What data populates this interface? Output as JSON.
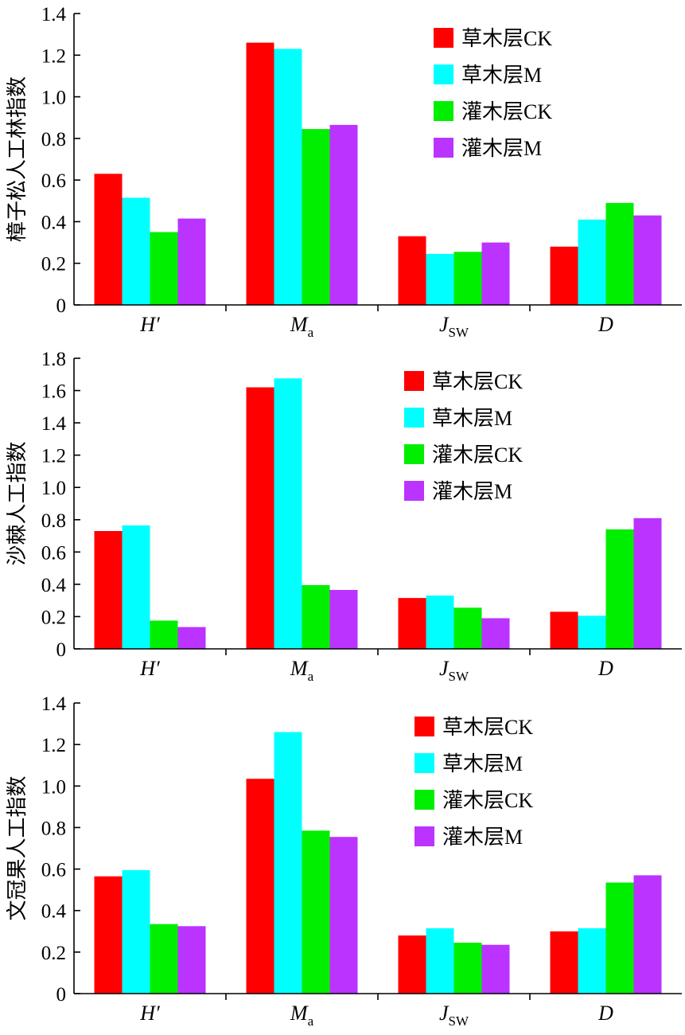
{
  "chart_data": [
    {
      "type": "bar",
      "title": "",
      "ylabel": "樟子松人工林指数",
      "ylim": [
        0,
        1.4
      ],
      "yticks": [
        "0",
        "0.2",
        "0.4",
        "0.6",
        "0.8",
        "1.0",
        "1.2",
        "1.4"
      ],
      "categories": [
        {
          "main": "H′",
          "sub": ""
        },
        {
          "main": "M",
          "sub": "a"
        },
        {
          "main": "J",
          "sub": "SW"
        },
        {
          "main": "D",
          "sub": ""
        }
      ],
      "series": [
        {
          "name": "草木层CK",
          "color": "#ff0000",
          "values": [
            0.63,
            1.26,
            0.33,
            0.28
          ]
        },
        {
          "name": "草木层M",
          "color": "#00ffff",
          "values": [
            0.515,
            1.23,
            0.245,
            0.41
          ]
        },
        {
          "name": "灌木层CK",
          "color": "#00ee00",
          "values": [
            0.35,
            0.845,
            0.255,
            0.49
          ]
        },
        {
          "name": "灌木层M",
          "color": "#bb33ff",
          "values": [
            0.415,
            0.865,
            0.3,
            0.43
          ]
        }
      ],
      "legend_position": "top-right"
    },
    {
      "type": "bar",
      "title": "",
      "ylabel": "沙棘人工指数",
      "ylim": [
        0,
        1.8
      ],
      "yticks": [
        "0",
        "0.2",
        "0.4",
        "0.6",
        "0.8",
        "1.0",
        "1.2",
        "1.4",
        "1.6",
        "1.8"
      ],
      "categories": [
        {
          "main": "H′",
          "sub": ""
        },
        {
          "main": "M",
          "sub": "a"
        },
        {
          "main": "J",
          "sub": "SW"
        },
        {
          "main": "D",
          "sub": ""
        }
      ],
      "series": [
        {
          "name": "草木层CK",
          "color": "#ff0000",
          "values": [
            0.73,
            1.62,
            0.315,
            0.23
          ]
        },
        {
          "name": "草木层M",
          "color": "#00ffff",
          "values": [
            0.765,
            1.675,
            0.33,
            0.205
          ]
        },
        {
          "name": "灌木层CK",
          "color": "#00ee00",
          "values": [
            0.175,
            0.395,
            0.255,
            0.74
          ]
        },
        {
          "name": "灌木层M",
          "color": "#bb33ff",
          "values": [
            0.135,
            0.365,
            0.19,
            0.81
          ]
        }
      ],
      "legend_position": "top-right"
    },
    {
      "type": "bar",
      "title": "",
      "ylabel": "文冠果人工指数",
      "ylim": [
        0,
        1.4
      ],
      "yticks": [
        "0",
        "0.2",
        "0.4",
        "0.6",
        "0.8",
        "1.0",
        "1.2",
        "1.4"
      ],
      "categories": [
        {
          "main": "H′",
          "sub": ""
        },
        {
          "main": "M",
          "sub": "a"
        },
        {
          "main": "J",
          "sub": "SW"
        },
        {
          "main": "D",
          "sub": ""
        }
      ],
      "series": [
        {
          "name": "草木层CK",
          "color": "#ff0000",
          "values": [
            0.565,
            1.035,
            0.28,
            0.3
          ]
        },
        {
          "name": "草木层M",
          "color": "#00ffff",
          "values": [
            0.595,
            1.26,
            0.315,
            0.315
          ]
        },
        {
          "name": "灌木层CK",
          "color": "#00ee00",
          "values": [
            0.335,
            0.785,
            0.245,
            0.535
          ]
        },
        {
          "name": "灌木层M",
          "color": "#bb33ff",
          "values": [
            0.325,
            0.755,
            0.235,
            0.57
          ]
        }
      ],
      "legend_position": "top-right"
    }
  ]
}
